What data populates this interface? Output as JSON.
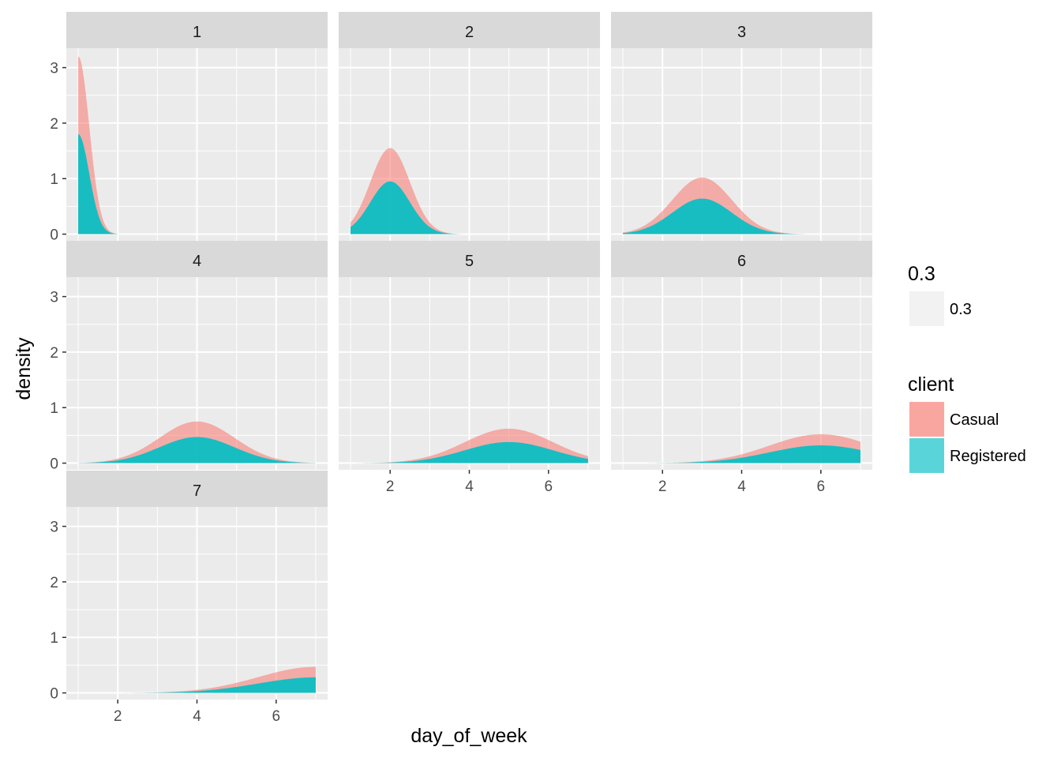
{
  "chart_data": {
    "type": "area",
    "subtype": "faceted-stacked-density",
    "xlabel": "day_of_week",
    "ylabel": "density",
    "xlim": [
      0.7,
      7.3
    ],
    "ylim": [
      -0.12,
      3.35
    ],
    "x_ticks": [
      2,
      4,
      6
    ],
    "x_tick_labels": [
      "2",
      "4",
      "6"
    ],
    "y_ticks": [
      0,
      1,
      2,
      3
    ],
    "y_tick_labels": [
      "0",
      "1",
      "2",
      "3"
    ],
    "grid": true,
    "facet_layout": {
      "ncol": 3,
      "nrow": 3
    },
    "facets": [
      {
        "label": "1",
        "x_min": 1,
        "x_max": 2.0,
        "mu": 1.0,
        "casual_peak": 3.2,
        "registered_peak": 1.8,
        "sigma": 0.28,
        "x_axis_shown": false
      },
      {
        "label": "2",
        "x_min": 1,
        "x_max": 4.2,
        "mu": 2.0,
        "casual_peak": 1.55,
        "registered_peak": 0.95,
        "sigma": 0.5,
        "x_axis_shown": true
      },
      {
        "label": "3",
        "x_min": 1,
        "x_max": 6.2,
        "mu": 3.0,
        "casual_peak": 1.02,
        "registered_peak": 0.64,
        "sigma": 0.75,
        "x_axis_shown": true
      },
      {
        "label": "4",
        "x_min": 1,
        "x_max": 7.0,
        "mu": 4.0,
        "casual_peak": 0.75,
        "registered_peak": 0.47,
        "sigma": 0.95,
        "x_axis_shown": false
      },
      {
        "label": "5",
        "x_min": 1,
        "x_max": 7.0,
        "mu": 5.0,
        "casual_peak": 0.62,
        "registered_peak": 0.38,
        "sigma": 1.12,
        "x_axis_shown": true
      },
      {
        "label": "6",
        "x_min": 1,
        "x_max": 7.0,
        "mu": 6.0,
        "casual_peak": 0.52,
        "registered_peak": 0.32,
        "sigma": 1.3,
        "x_axis_shown": true
      },
      {
        "label": "7",
        "x_min": 1,
        "x_max": 7.0,
        "mu": 7.0,
        "casual_peak": 0.47,
        "registered_peak": 0.28,
        "sigma": 1.45,
        "x_axis_shown": true
      }
    ],
    "series": [
      {
        "name": "Casual",
        "color": "#F8766D"
      },
      {
        "name": "Registered",
        "color": "#00BFC4"
      }
    ],
    "fill_alpha": 0.55,
    "legend": {
      "position": "right",
      "groups": [
        {
          "title": "0.3",
          "items": [
            {
              "label": "0.3",
              "color": "#F2F2F2"
            }
          ]
        },
        {
          "title": "client",
          "items": [
            {
              "label": "Casual",
              "color": "#F8766D"
            },
            {
              "label": "Registered",
              "color": "#00BFC4"
            }
          ]
        }
      ]
    }
  }
}
